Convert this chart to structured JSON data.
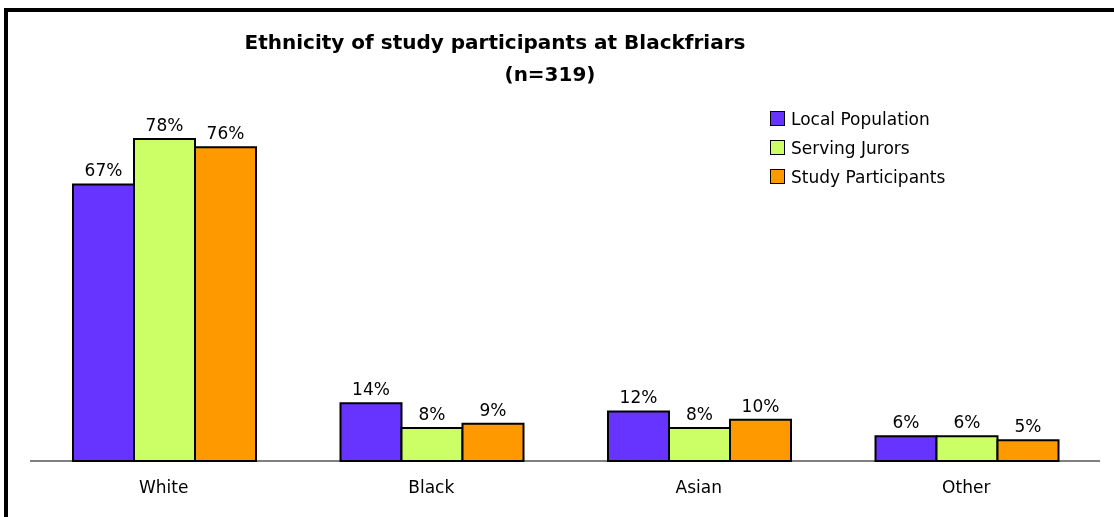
{
  "chart_data": {
    "type": "bar",
    "title": "Ethnicity of study participants at Blackfriars",
    "subtitle": "(n=319)",
    "categories": [
      "White",
      "Black",
      "Asian",
      "Other"
    ],
    "series": [
      {
        "name": "Local Population",
        "color": "#6633ff",
        "values": [
          67,
          14,
          12,
          6
        ],
        "value_labels": [
          "67%",
          "14%",
          "12%",
          "6%"
        ]
      },
      {
        "name": "Serving Jurors",
        "color": "#ccff66",
        "values": [
          78,
          8,
          8,
          6
        ],
        "value_labels": [
          "78%",
          "8%",
          "8%",
          "6%"
        ]
      },
      {
        "name": "Study Participants",
        "color": "#ff9900",
        "values": [
          76,
          9,
          10,
          5
        ],
        "value_labels": [
          "76%",
          "9%",
          "10%",
          "5%"
        ]
      }
    ],
    "tick_labels": "x",
    "legend": "top right",
    "grid": false
  }
}
